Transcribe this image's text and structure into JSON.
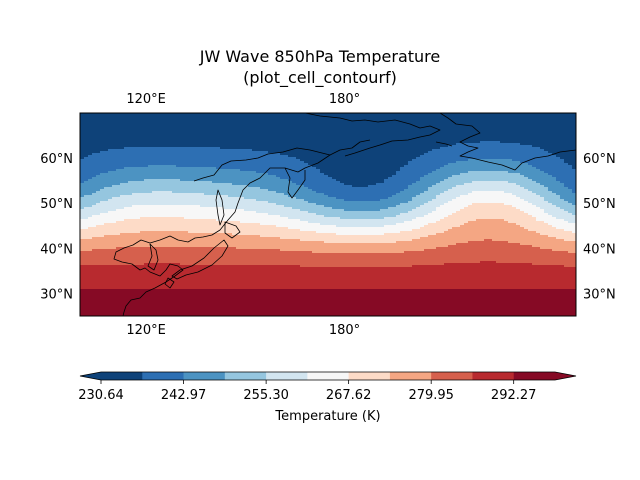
{
  "chart_data": {
    "type": "heatmap",
    "subtype": "filled contour map",
    "title": "JW Wave 850hPa Temperature",
    "subtitle": "(plot_cell_contourf)",
    "map": {
      "lon_range": [
        100,
        250
      ],
      "lat_range": [
        25,
        70
      ],
      "lon_ticks": [
        {
          "value": 120,
          "label": "120°E"
        },
        {
          "value": 180,
          "label": "180°"
        }
      ],
      "lat_ticks": [
        {
          "value": 30,
          "label": "30°N"
        },
        {
          "value": 40,
          "label": "40°N"
        },
        {
          "value": 50,
          "label": "50°N"
        },
        {
          "value": 60,
          "label": "60°N"
        }
      ],
      "coastlines": true
    },
    "colorbar": {
      "label": "Temperature (K)",
      "tick_values": [
        230.64,
        242.97,
        255.3,
        267.62,
        279.95,
        292.27
      ],
      "tick_labels": [
        "230.64",
        "242.97",
        "255.30",
        "267.62",
        "279.95",
        "292.27"
      ],
      "levels": [
        230.64,
        236.81,
        242.97,
        249.14,
        255.3,
        261.46,
        267.62,
        273.79,
        279.95,
        286.11,
        292.27,
        298.44
      ],
      "colors": [
        "#0e4279",
        "#2d6fb3",
        "#4c93c2",
        "#95c6df",
        "#d2e5f0",
        "#f7f7f7",
        "#fddbc7",
        "#f4a683",
        "#d6604d",
        "#b82a2f",
        "#860a25"
      ],
      "extend": "both",
      "cmap": "RdBu_r"
    }
  }
}
